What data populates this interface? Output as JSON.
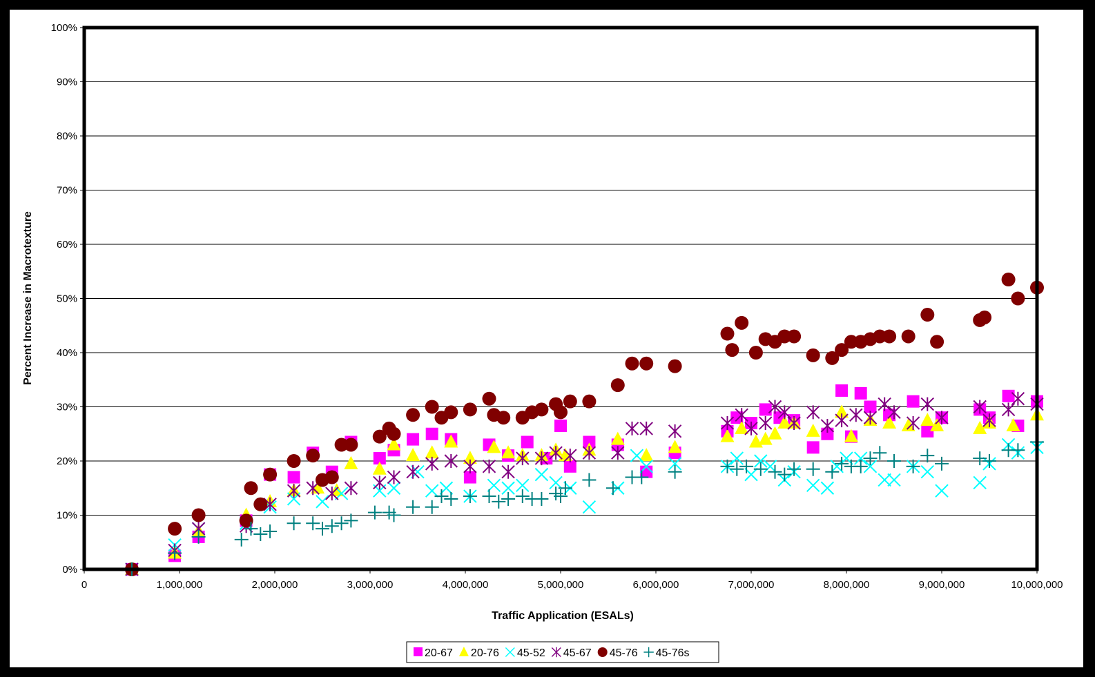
{
  "chart_data": {
    "type": "scatter",
    "title": "",
    "xlabel": "Traffic Application (ESALs)",
    "ylabel": "Percent Increase in Macrotexture",
    "xlim": [
      0,
      10000000
    ],
    "ylim": [
      0,
      100
    ],
    "grid": "horizontal",
    "legend_position": "bottom-center",
    "x_ticks": [
      "0",
      "1,000,000",
      "2,000,000",
      "3,000,000",
      "4,000,000",
      "5,000,000",
      "6,000,000",
      "7,000,000",
      "8,000,000",
      "9,000,000",
      "10,000,000"
    ],
    "y_ticks": [
      "0%",
      "10%",
      "20%",
      "30%",
      "40%",
      "50%",
      "60%",
      "70%",
      "80%",
      "90%",
      "100%"
    ],
    "series": [
      {
        "name": "20-67",
        "marker": "square",
        "color": "#ff00ff",
        "x": [
          500000,
          950000,
          1200000,
          1700000,
          1950000,
          2200000,
          2400000,
          2600000,
          2800000,
          3100000,
          3250000,
          3450000,
          3650000,
          3850000,
          4050000,
          4250000,
          4450000,
          4650000,
          4850000,
          5000000,
          5100000,
          5300000,
          5600000,
          5900000,
          6200000,
          6750000,
          6850000,
          7000000,
          7150000,
          7300000,
          7450000,
          7650000,
          7800000,
          7950000,
          8050000,
          8150000,
          8250000,
          8450000,
          8700000,
          8850000,
          9000000,
          9400000,
          9500000,
          9700000,
          9800000,
          10000000
        ],
        "y": [
          0,
          2.5,
          6,
          9,
          17.5,
          17,
          21.5,
          18,
          23.5,
          20.5,
          22,
          24,
          25,
          24,
          17,
          23,
          21,
          23.5,
          20.5,
          26.5,
          19,
          23.5,
          23,
          18,
          21.5,
          25.5,
          28,
          27,
          29.5,
          28,
          27.5,
          22.5,
          25,
          33,
          24.5,
          32.5,
          30,
          28.5,
          31,
          25.5,
          28,
          29.5,
          28,
          32,
          26.5,
          31
        ]
      },
      {
        "name": "20-76",
        "marker": "triangle",
        "color": "#ffff00",
        "x": [
          500000,
          950000,
          1200000,
          1700000,
          1950000,
          2200000,
          2450000,
          2650000,
          2800000,
          3100000,
          3250000,
          3450000,
          3650000,
          3850000,
          4050000,
          4300000,
          4450000,
          4600000,
          4800000,
          4950000,
          5050000,
          5300000,
          5600000,
          5900000,
          6200000,
          6750000,
          6900000,
          7050000,
          7150000,
          7250000,
          7350000,
          7450000,
          7650000,
          7950000,
          8050000,
          8250000,
          8450000,
          8650000,
          8850000,
          8950000,
          9400000,
          9500000,
          9750000,
          10000000
        ],
        "y": [
          0,
          3,
          7,
          10,
          12.5,
          14.5,
          15,
          14.5,
          19.5,
          18.5,
          23,
          21,
          21.5,
          23.5,
          20.5,
          22.5,
          21.5,
          21,
          21,
          22,
          21,
          22,
          24,
          21,
          22.5,
          24.5,
          26,
          23.5,
          24,
          25,
          27,
          27,
          25.5,
          29,
          24.5,
          27.5,
          27,
          26.5,
          27.5,
          26.5,
          26,
          27,
          26.5,
          28.5
        ]
      },
      {
        "name": "45-52",
        "marker": "x",
        "color": "#00ffff",
        "x": [
          500000,
          950000,
          1200000,
          1700000,
          1950000,
          2200000,
          2500000,
          2700000,
          3100000,
          3250000,
          3500000,
          3650000,
          3800000,
          4050000,
          4300000,
          4450000,
          4600000,
          4800000,
          4950000,
          5100000,
          5300000,
          5600000,
          5800000,
          5900000,
          6200000,
          6750000,
          6850000,
          7000000,
          7100000,
          7200000,
          7350000,
          7450000,
          7650000,
          7800000,
          7900000,
          8000000,
          8150000,
          8250000,
          8400000,
          8500000,
          8700000,
          8850000,
          9000000,
          9400000,
          9500000,
          9700000,
          9800000,
          10000000
        ],
        "y": [
          0,
          4.5,
          7.5,
          8.5,
          11.5,
          13,
          12.5,
          14,
          14.5,
          15,
          18,
          14.5,
          15,
          13.5,
          15.5,
          15,
          15.5,
          17.5,
          16,
          15,
          11.5,
          15,
          21,
          19,
          19.5,
          19,
          20.5,
          17.5,
          20,
          19,
          16.5,
          18,
          15.5,
          15,
          19,
          20.5,
          20.5,
          19,
          16.5,
          16.5,
          19,
          18,
          14.5,
          16,
          19.5,
          23,
          21.5,
          22.5
        ]
      },
      {
        "name": "45-67",
        "marker": "star",
        "color": "#800080",
        "x": [
          500000,
          950000,
          1200000,
          1700000,
          1950000,
          2200000,
          2400000,
          2600000,
          2800000,
          3100000,
          3250000,
          3450000,
          3650000,
          3850000,
          4050000,
          4250000,
          4450000,
          4600000,
          4800000,
          4950000,
          5100000,
          5300000,
          5600000,
          5750000,
          5900000,
          6200000,
          6750000,
          6900000,
          7000000,
          7150000,
          7250000,
          7350000,
          7450000,
          7650000,
          7800000,
          7950000,
          8100000,
          8250000,
          8400000,
          8500000,
          8700000,
          8850000,
          9000000,
          9400000,
          9500000,
          9700000,
          9800000,
          10000000
        ],
        "y": [
          0,
          3.5,
          7.5,
          8,
          12,
          14.5,
          15,
          14,
          15,
          16,
          17,
          18,
          19.5,
          20,
          19,
          19,
          18,
          20.5,
          20.5,
          21.5,
          21,
          21.5,
          21.5,
          26,
          26,
          25.5,
          27,
          28.5,
          26,
          27,
          30,
          29,
          27,
          29,
          26.5,
          27.5,
          28.5,
          28,
          30.5,
          29,
          27,
          30.5,
          28,
          30,
          27.5,
          29.5,
          31.5,
          30.5
        ]
      },
      {
        "name": "45-76",
        "marker": "circle",
        "color": "#800000",
        "x": [
          500000,
          950000,
          1200000,
          1700000,
          1750000,
          1850000,
          1950000,
          2200000,
          2400000,
          2500000,
          2600000,
          2700000,
          2800000,
          3100000,
          3200000,
          3250000,
          3450000,
          3650000,
          3750000,
          3850000,
          4050000,
          4250000,
          4300000,
          4400000,
          4600000,
          4700000,
          4800000,
          4950000,
          5000000,
          5100000,
          5300000,
          5600000,
          5750000,
          5900000,
          6200000,
          6750000,
          6800000,
          6900000,
          7050000,
          7150000,
          7250000,
          7350000,
          7450000,
          7650000,
          7850000,
          7950000,
          8050000,
          8150000,
          8250000,
          8350000,
          8450000,
          8650000,
          8850000,
          8950000,
          9400000,
          9450000,
          9700000,
          9800000,
          10000000
        ],
        "y": [
          0,
          7.5,
          10,
          9,
          15,
          12,
          17.5,
          20,
          21,
          16.5,
          17,
          23,
          23,
          24.5,
          26,
          25,
          28.5,
          30,
          28,
          29,
          29.5,
          31.5,
          28.5,
          28,
          28,
          29,
          29.5,
          30.5,
          29,
          31,
          31,
          34,
          38,
          38,
          37.5,
          43.5,
          40.5,
          45.5,
          40,
          42.5,
          42,
          43,
          43,
          39.5,
          39,
          40.5,
          42,
          42,
          42.5,
          43,
          43,
          43,
          47,
          42,
          46,
          46.5,
          53.5,
          50,
          52
        ]
      },
      {
        "name": "45-76s",
        "marker": "plus",
        "color": "#008080",
        "x": [
          500000,
          950000,
          1200000,
          1650000,
          1750000,
          1850000,
          1950000,
          2200000,
          2400000,
          2500000,
          2600000,
          2700000,
          2800000,
          3050000,
          3200000,
          3250000,
          3450000,
          3650000,
          3750000,
          3850000,
          4050000,
          4250000,
          4350000,
          4450000,
          4600000,
          4700000,
          4800000,
          4950000,
          5000000,
          5050000,
          5300000,
          5550000,
          5750000,
          5850000,
          6200000,
          6750000,
          6850000,
          6950000,
          7100000,
          7250000,
          7350000,
          7450000,
          7650000,
          7850000,
          7950000,
          8050000,
          8150000,
          8250000,
          8350000,
          8500000,
          8700000,
          8850000,
          9000000,
          9400000,
          9500000,
          9700000,
          9800000,
          10000000
        ],
        "y": [
          0,
          3,
          6,
          5.5,
          7.5,
          6.5,
          7,
          8.5,
          8.5,
          7.5,
          8,
          8.5,
          9,
          10.5,
          10.5,
          10,
          11.5,
          11.5,
          13.5,
          13,
          13.5,
          13.5,
          12.5,
          13,
          13.5,
          13,
          13,
          14,
          13.5,
          15,
          16.5,
          15,
          17,
          17,
          18,
          19,
          18.5,
          19,
          18.5,
          18,
          17.5,
          18.5,
          18.5,
          18,
          19.5,
          19,
          19,
          20.5,
          21.5,
          20,
          19,
          21,
          19.5,
          20.5,
          20,
          22,
          22,
          23.5
        ]
      }
    ]
  }
}
